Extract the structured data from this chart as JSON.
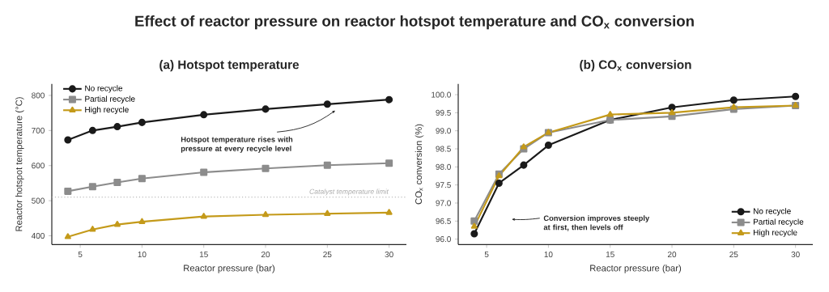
{
  "chart_data": [
    {
      "type": "line",
      "title": "Effect of reactor pressure on reactor hotspot temperature and CO$_{x}$ conversion",
      "subtitle": "(a) Hotspot temperature",
      "xlabel": "Reactor pressure (bar)",
      "ylabel": "Reactor hotspot temperature (°C)",
      "x": [
        4,
        6,
        8,
        10,
        15,
        20,
        25,
        30
      ],
      "series": [
        {
          "name": "No recycle",
          "color": "#1a1a1a",
          "marker": "circle",
          "values": [
            673,
            700,
            711,
            723,
            745,
            761,
            775,
            788
          ]
        },
        {
          "name": "Partial recycle",
          "color": "#8c8c8c",
          "marker": "square",
          "values": [
            527,
            540,
            552,
            563,
            581,
            592,
            601,
            607
          ]
        },
        {
          "name": "High recycle",
          "color": "#c49a1a",
          "marker": "triangle",
          "values": [
            397,
            418,
            432,
            440,
            455,
            460,
            463,
            466
          ]
        }
      ],
      "xlim": [
        2.7,
        31.4
      ],
      "ylim": [
        375,
        833
      ],
      "xticks": [
        5,
        10,
        15,
        20,
        25,
        30
      ],
      "yticks": [
        400,
        500,
        600,
        700,
        800
      ],
      "ref_lines": [
        {
          "axis": "y",
          "value": 510,
          "label": "Catalyst temperature limit",
          "color": "#aaaaaa",
          "line_style": "dotted"
        }
      ],
      "annotations": [
        "Hotspot temperature rises with pressure at every recycle level"
      ],
      "legend": "top left",
      "grid": false,
      "line_style": "solid"
    },
    {
      "type": "line",
      "title": "(b) CO$_{x}$ conversion",
      "xlabel": "Reactor pressure (bar)",
      "ylabel": "CO$_{x}$ conversion (%)",
      "x": [
        4,
        6,
        8,
        10,
        15,
        20,
        25,
        30
      ],
      "series": [
        {
          "name": "No recycle",
          "color": "#1a1a1a",
          "marker": "circle",
          "values": [
            96.15,
            97.55,
            98.05,
            98.6,
            99.3,
            99.65,
            99.85,
            99.95
          ]
        },
        {
          "name": "Partial recycle",
          "color": "#8c8c8c",
          "marker": "square",
          "values": [
            96.5,
            97.8,
            98.5,
            98.95,
            99.3,
            99.4,
            99.6,
            99.7
          ]
        },
        {
          "name": "High recycle",
          "color": "#c49a1a",
          "marker": "triangle",
          "values": [
            96.35,
            97.75,
            98.55,
            98.95,
            99.45,
            99.5,
            99.65,
            99.7
          ]
        }
      ],
      "xlim": [
        2.7,
        31.4
      ],
      "ylim": [
        95.85,
        100.3
      ],
      "xticks": [
        5,
        10,
        15,
        20,
        25,
        30
      ],
      "yticks": [
        {
          "value": 96,
          "label": "96.0"
        },
        {
          "value": 96.5,
          "label": "96.5"
        },
        {
          "value": 97,
          "label": "97.0"
        },
        {
          "value": 97.5,
          "label": "97.5"
        },
        {
          "value": 98,
          "label": "98.0"
        },
        {
          "value": 98.5,
          "label": "98.5"
        },
        {
          "value": 99,
          "label": "99.0"
        },
        {
          "value": 99.5,
          "label": "99.5"
        },
        {
          "value": 100,
          "label": "100.0"
        }
      ],
      "annotations": [
        "Conversion improves steeply at first, then levels off"
      ],
      "legend": "bottom right",
      "grid": false,
      "line_style": "solid"
    }
  ]
}
